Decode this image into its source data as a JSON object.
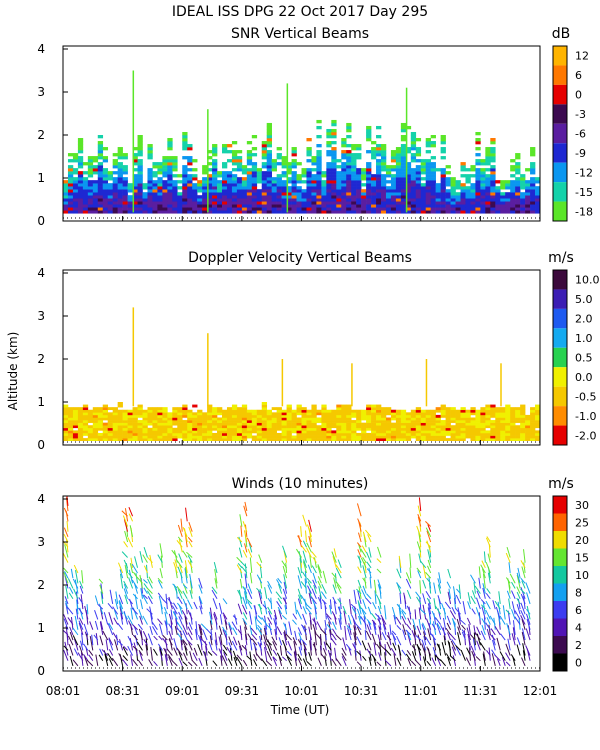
{
  "header": {
    "title": "IDEAL ISS DPG  22 Oct 2017 Day 295",
    "ylabel": "Altitude (km)",
    "xlabel": "Time (UT)"
  },
  "chart_data": [
    {
      "type": "heatmap",
      "title": "SNR Vertical Beams",
      "unit": "dB",
      "x_ticks": [
        "08:01",
        "08:31",
        "09:01",
        "09:31",
        "10:01",
        "10:31",
        "11:01",
        "11:31",
        "12:01"
      ],
      "ylim": [
        0,
        4
      ],
      "y_ticks": [
        "0",
        "1",
        "2",
        "3",
        "4"
      ],
      "scale": [
        {
          "label": "12",
          "color": "#ffb400"
        },
        {
          "label": "6",
          "color": "#ff7800"
        },
        {
          "label": "0",
          "color": "#e60000"
        },
        {
          "label": "-3",
          "color": "#3c0a50"
        },
        {
          "label": "-6",
          "color": "#5a1ea0"
        },
        {
          "label": "-9",
          "color": "#1e28d2"
        },
        {
          "label": "-12",
          "color": "#0a96f0"
        },
        {
          "label": "-15",
          "color": "#14d2aa"
        },
        {
          "label": "-18",
          "color": "#5ae628"
        }
      ]
    },
    {
      "type": "heatmap",
      "title": "Doppler Velocity Vertical Beams",
      "unit": "m/s",
      "x_ticks": [
        "08:01",
        "08:31",
        "09:01",
        "09:31",
        "10:01",
        "10:31",
        "11:01",
        "11:31",
        "12:01"
      ],
      "ylim": [
        0,
        4
      ],
      "y_ticks": [
        "0",
        "1",
        "2",
        "3",
        "4"
      ],
      "scale": [
        {
          "label": "10.0",
          "color": "#3c0a3c"
        },
        {
          "label": "5.0",
          "color": "#3c1eb4"
        },
        {
          "label": "2.0",
          "color": "#1e5af0"
        },
        {
          "label": "1.0",
          "color": "#14aaf0"
        },
        {
          "label": "0.5",
          "color": "#28d250"
        },
        {
          "label": "0.0",
          "color": "#f0f000"
        },
        {
          "label": "-0.5",
          "color": "#f5c800"
        },
        {
          "label": "-1.0",
          "color": "#ff8c00"
        },
        {
          "label": "-2.0",
          "color": "#e60000"
        }
      ]
    },
    {
      "type": "scatter",
      "title": "Winds (10 minutes)",
      "unit": "m/s",
      "x_ticks": [
        "08:01",
        "08:31",
        "09:01",
        "09:31",
        "10:01",
        "10:31",
        "11:01",
        "11:31",
        "12:01"
      ],
      "ylim": [
        0,
        4
      ],
      "y_ticks": [
        "0",
        "1",
        "2",
        "3",
        "4"
      ],
      "scale": [
        {
          "label": "30",
          "color": "#e60000"
        },
        {
          "label": "25",
          "color": "#ff6400"
        },
        {
          "label": "20",
          "color": "#f0dc00"
        },
        {
          "label": "15",
          "color": "#64e632"
        },
        {
          "label": "10",
          "color": "#14c8a0"
        },
        {
          "label": "8",
          "color": "#14a0f0"
        },
        {
          "label": "6",
          "color": "#3c3cf0"
        },
        {
          "label": "4",
          "color": "#5014b4"
        },
        {
          "label": "2",
          "color": "#3c0a50"
        },
        {
          "label": "0",
          "color": "#000000"
        }
      ]
    }
  ]
}
